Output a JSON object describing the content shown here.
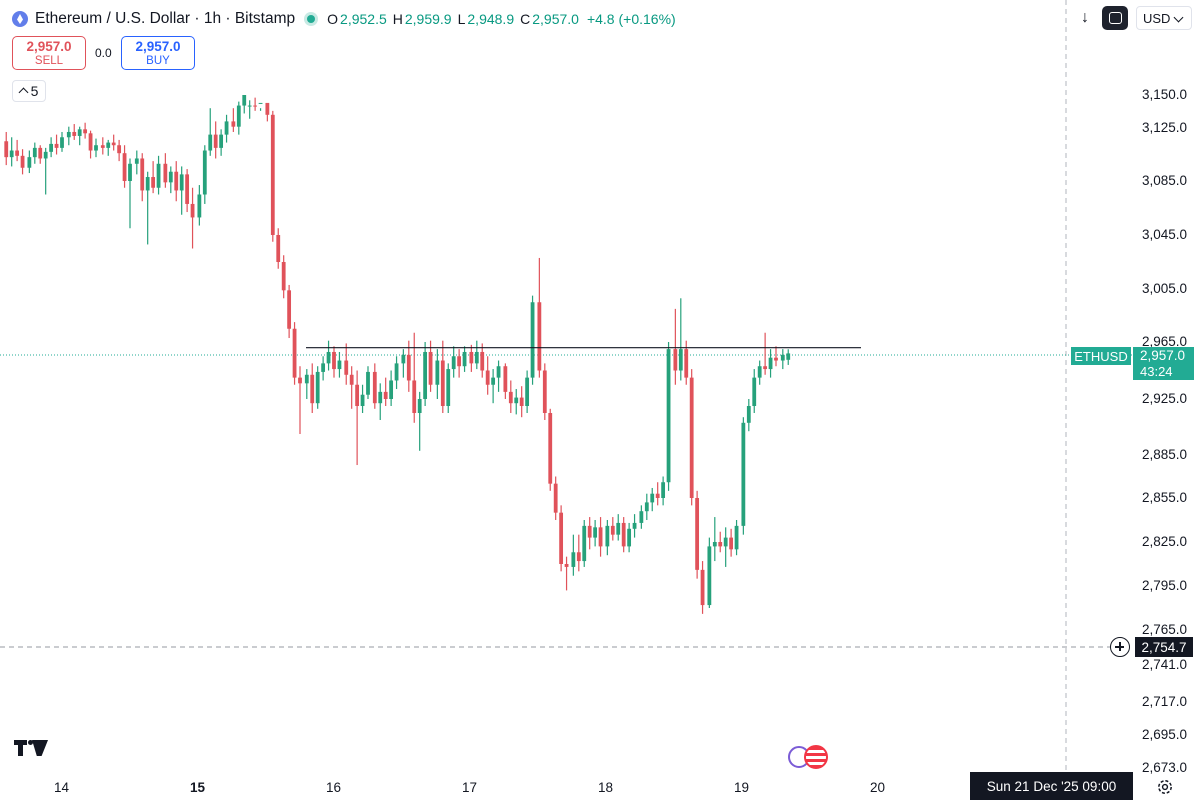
{
  "legend": {
    "title": "Ethereum / U.S. Dollar · 1h · Bitstamp",
    "o_label": "O",
    "o_value": "2,952.5",
    "h_label": "H",
    "h_value": "2,959.9",
    "l_label": "L",
    "l_value": "2,948.9",
    "c_label": "C",
    "c_value": "2,957.0",
    "change": "+4.8 (+0.16%)",
    "icon": "ethereum-icon"
  },
  "trade": {
    "sell_price": "2,957.0",
    "sell_label": "SELL",
    "spread": "0.0",
    "buy_price": "2,957.0",
    "buy_label": "BUY"
  },
  "indicator_count": "5",
  "toolbar": {
    "currency": "USD"
  },
  "price_axis": {
    "ticks": [
      "3,150.0",
      "3,125.0",
      "3,085.0",
      "3,045.0",
      "3,005.0",
      "2,965.0",
      "2,925.0",
      "2,885.0",
      "2,855.0",
      "2,825.0",
      "2,795.0",
      "2,765.0",
      "2,741.0",
      "2,717.0",
      "2,695.0",
      "2,673.0"
    ],
    "symbol": "ETHUSD",
    "last_price": "2,957.0",
    "countdown": "43:24",
    "crosshair_price": "2,754.7"
  },
  "time_axis": {
    "ticks": [
      "14",
      "15",
      "16",
      "17",
      "18",
      "19",
      "20"
    ],
    "bold_tick": "15",
    "crosshair_time": "Sun 21 Dec '25   09:00"
  },
  "colors": {
    "up": "#26a17b",
    "down": "#e0525a",
    "level_line": "#131722",
    "accent": "#22ab94"
  },
  "chart_data": {
    "type": "candlestick",
    "title": "Ethereum / U.S. Dollar · 1h · Bitstamp",
    "interval": "1h",
    "ylim": [
      2665,
      3175
    ],
    "x_range": [
      13.57,
      20.76
    ],
    "horizontal_line": 2961,
    "last_price": 2957.0,
    "crosshair": {
      "price": 2754.7,
      "time": "Sun 21 Dec '25 09:00"
    },
    "series": [
      {
        "t": 13.59,
        "o": 3115,
        "h": 3122,
        "l": 3097,
        "c": 3103
      },
      {
        "t": 13.63,
        "o": 3103,
        "h": 3118,
        "l": 3096,
        "c": 3108
      },
      {
        "t": 13.67,
        "o": 3108,
        "h": 3116,
        "l": 3100,
        "c": 3104
      },
      {
        "t": 13.71,
        "o": 3104,
        "h": 3109,
        "l": 3090,
        "c": 3095
      },
      {
        "t": 13.76,
        "o": 3095,
        "h": 3108,
        "l": 3091,
        "c": 3103
      },
      {
        "t": 13.8,
        "o": 3103,
        "h": 3114,
        "l": 3098,
        "c": 3110
      },
      {
        "t": 13.84,
        "o": 3110,
        "h": 3112,
        "l": 3098,
        "c": 3102
      },
      {
        "t": 13.88,
        "o": 3102,
        "h": 3110,
        "l": 3075,
        "c": 3107
      },
      {
        "t": 13.92,
        "o": 3107,
        "h": 3118,
        "l": 3103,
        "c": 3113
      },
      {
        "t": 13.96,
        "o": 3113,
        "h": 3120,
        "l": 3105,
        "c": 3110
      },
      {
        "t": 14.0,
        "o": 3110,
        "h": 3122,
        "l": 3107,
        "c": 3118
      },
      {
        "t": 14.05,
        "o": 3118,
        "h": 3126,
        "l": 3112,
        "c": 3122
      },
      {
        "t": 14.09,
        "o": 3122,
        "h": 3128,
        "l": 3116,
        "c": 3119
      },
      {
        "t": 14.13,
        "o": 3119,
        "h": 3126,
        "l": 3112,
        "c": 3124
      },
      {
        "t": 14.17,
        "o": 3124,
        "h": 3129,
        "l": 3117,
        "c": 3121
      },
      {
        "t": 14.21,
        "o": 3121,
        "h": 3123,
        "l": 3102,
        "c": 3108
      },
      {
        "t": 14.25,
        "o": 3108,
        "h": 3117,
        "l": 3103,
        "c": 3112
      },
      {
        "t": 14.3,
        "o": 3112,
        "h": 3118,
        "l": 3105,
        "c": 3110
      },
      {
        "t": 14.34,
        "o": 3110,
        "h": 3116,
        "l": 3104,
        "c": 3114
      },
      {
        "t": 14.38,
        "o": 3114,
        "h": 3120,
        "l": 3108,
        "c": 3112
      },
      {
        "t": 14.42,
        "o": 3112,
        "h": 3116,
        "l": 3100,
        "c": 3106
      },
      {
        "t": 14.46,
        "o": 3106,
        "h": 3112,
        "l": 3080,
        "c": 3085
      },
      {
        "t": 14.5,
        "o": 3085,
        "h": 3102,
        "l": 3050,
        "c": 3098
      },
      {
        "t": 14.55,
        "o": 3098,
        "h": 3108,
        "l": 3090,
        "c": 3102
      },
      {
        "t": 14.59,
        "o": 3102,
        "h": 3106,
        "l": 3070,
        "c": 3078
      },
      {
        "t": 14.63,
        "o": 3078,
        "h": 3092,
        "l": 3038,
        "c": 3088
      },
      {
        "t": 14.67,
        "o": 3088,
        "h": 3100,
        "l": 3076,
        "c": 3080
      },
      {
        "t": 14.71,
        "o": 3080,
        "h": 3104,
        "l": 3075,
        "c": 3098
      },
      {
        "t": 14.76,
        "o": 3098,
        "h": 3106,
        "l": 3080,
        "c": 3084
      },
      {
        "t": 14.8,
        "o": 3084,
        "h": 3096,
        "l": 3076,
        "c": 3092
      },
      {
        "t": 14.84,
        "o": 3092,
        "h": 3100,
        "l": 3070,
        "c": 3078
      },
      {
        "t": 14.88,
        "o": 3078,
        "h": 3096,
        "l": 3060,
        "c": 3090
      },
      {
        "t": 14.92,
        "o": 3090,
        "h": 3094,
        "l": 3062,
        "c": 3068
      },
      {
        "t": 14.96,
        "o": 3068,
        "h": 3080,
        "l": 3035,
        "c": 3058
      },
      {
        "t": 15.01,
        "o": 3058,
        "h": 3082,
        "l": 3052,
        "c": 3075
      },
      {
        "t": 15.05,
        "o": 3075,
        "h": 3112,
        "l": 3068,
        "c": 3108
      },
      {
        "t": 15.09,
        "o": 3108,
        "h": 3140,
        "l": 3104,
        "c": 3120
      },
      {
        "t": 15.13,
        "o": 3120,
        "h": 3130,
        "l": 3102,
        "c": 3110
      },
      {
        "t": 15.17,
        "o": 3110,
        "h": 3124,
        "l": 3104,
        "c": 3120
      },
      {
        "t": 15.21,
        "o": 3120,
        "h": 3135,
        "l": 3114,
        "c": 3130
      },
      {
        "t": 15.26,
        "o": 3130,
        "h": 3140,
        "l": 3122,
        "c": 3126
      },
      {
        "t": 15.3,
        "o": 3126,
        "h": 3145,
        "l": 3120,
        "c": 3142
      },
      {
        "t": 15.34,
        "o": 3142,
        "h": 3155,
        "l": 3136,
        "c": 3150
      },
      {
        "t": 15.38,
        "o": 3150,
        "h": 3168,
        "l": 3146,
        "c": 3158
      },
      {
        "t": 15.42,
        "o": 3158,
        "h": 3162,
        "l": 3148,
        "c": 3153
      },
      {
        "t": 15.46,
        "o": 3153,
        "h": 3162,
        "l": 3140,
        "c": 3156
      },
      {
        "t": 15.51,
        "o": 3156,
        "h": 3158,
        "l": 3130,
        "c": 3135
      },
      {
        "t": 15.55,
        "o": 3135,
        "h": 3138,
        "l": 3040,
        "c": 3045
      },
      {
        "t": 15.59,
        "o": 3045,
        "h": 3050,
        "l": 3020,
        "c": 3025
      },
      {
        "t": 15.63,
        "o": 3025,
        "h": 3030,
        "l": 2998,
        "c": 3004
      },
      {
        "t": 15.67,
        "o": 3004,
        "h": 3008,
        "l": 2968,
        "c": 2975
      },
      {
        "t": 15.71,
        "o": 2975,
        "h": 2980,
        "l": 2935,
        "c": 2940
      },
      {
        "t": 15.75,
        "o": 2940,
        "h": 2948,
        "l": 2900,
        "c": 2936
      },
      {
        "t": 15.8,
        "o": 2936,
        "h": 2946,
        "l": 2925,
        "c": 2942
      },
      {
        "t": 15.84,
        "o": 2942,
        "h": 2950,
        "l": 2915,
        "c": 2922
      },
      {
        "t": 15.88,
        "o": 2922,
        "h": 2948,
        "l": 2918,
        "c": 2944
      },
      {
        "t": 15.92,
        "o": 2944,
        "h": 2955,
        "l": 2938,
        "c": 2950
      },
      {
        "t": 15.96,
        "o": 2950,
        "h": 2966,
        "l": 2945,
        "c": 2958
      },
      {
        "t": 16.0,
        "o": 2958,
        "h": 2962,
        "l": 2940,
        "c": 2946
      },
      {
        "t": 16.04,
        "o": 2946,
        "h": 2958,
        "l": 2940,
        "c": 2952
      },
      {
        "t": 16.09,
        "o": 2952,
        "h": 2964,
        "l": 2935,
        "c": 2942
      },
      {
        "t": 16.13,
        "o": 2942,
        "h": 2948,
        "l": 2918,
        "c": 2935
      },
      {
        "t": 16.17,
        "o": 2935,
        "h": 2945,
        "l": 2878,
        "c": 2920
      },
      {
        "t": 16.21,
        "o": 2920,
        "h": 2935,
        "l": 2915,
        "c": 2928
      },
      {
        "t": 16.25,
        "o": 2928,
        "h": 2948,
        "l": 2925,
        "c": 2944
      },
      {
        "t": 16.3,
        "o": 2944,
        "h": 2950,
        "l": 2918,
        "c": 2922
      },
      {
        "t": 16.34,
        "o": 2922,
        "h": 2936,
        "l": 2910,
        "c": 2930
      },
      {
        "t": 16.38,
        "o": 2930,
        "h": 2940,
        "l": 2920,
        "c": 2925
      },
      {
        "t": 16.42,
        "o": 2925,
        "h": 2945,
        "l": 2920,
        "c": 2938
      },
      {
        "t": 16.46,
        "o": 2938,
        "h": 2955,
        "l": 2932,
        "c": 2950
      },
      {
        "t": 16.51,
        "o": 2950,
        "h": 2960,
        "l": 2940,
        "c": 2956
      },
      {
        "t": 16.55,
        "o": 2956,
        "h": 2966,
        "l": 2930,
        "c": 2938
      },
      {
        "t": 16.59,
        "o": 2938,
        "h": 2972,
        "l": 2908,
        "c": 2915
      },
      {
        "t": 16.63,
        "o": 2915,
        "h": 2930,
        "l": 2888,
        "c": 2925
      },
      {
        "t": 16.67,
        "o": 2925,
        "h": 2965,
        "l": 2920,
        "c": 2958
      },
      {
        "t": 16.71,
        "o": 2958,
        "h": 2966,
        "l": 2930,
        "c": 2935
      },
      {
        "t": 16.76,
        "o": 2935,
        "h": 2960,
        "l": 2925,
        "c": 2952
      },
      {
        "t": 16.8,
        "o": 2952,
        "h": 2966,
        "l": 2915,
        "c": 2920
      },
      {
        "t": 16.84,
        "o": 2920,
        "h": 2950,
        "l": 2915,
        "c": 2946
      },
      {
        "t": 16.88,
        "o": 2946,
        "h": 2962,
        "l": 2940,
        "c": 2955
      },
      {
        "t": 16.92,
        "o": 2955,
        "h": 2960,
        "l": 2940,
        "c": 2948
      },
      {
        "t": 16.96,
        "o": 2948,
        "h": 2962,
        "l": 2944,
        "c": 2958
      },
      {
        "t": 17.01,
        "o": 2958,
        "h": 2963,
        "l": 2944,
        "c": 2950
      },
      {
        "t": 17.05,
        "o": 2950,
        "h": 2966,
        "l": 2946,
        "c": 2958
      },
      {
        "t": 17.09,
        "o": 2958,
        "h": 2964,
        "l": 2940,
        "c": 2945
      },
      {
        "t": 17.13,
        "o": 2945,
        "h": 2955,
        "l": 2928,
        "c": 2935
      },
      {
        "t": 17.17,
        "o": 2935,
        "h": 2946,
        "l": 2922,
        "c": 2940
      },
      {
        "t": 17.21,
        "o": 2940,
        "h": 2952,
        "l": 2930,
        "c": 2948
      },
      {
        "t": 17.26,
        "o": 2948,
        "h": 2950,
        "l": 2925,
        "c": 2930
      },
      {
        "t": 17.3,
        "o": 2930,
        "h": 2938,
        "l": 2915,
        "c": 2922
      },
      {
        "t": 17.34,
        "o": 2922,
        "h": 2932,
        "l": 2914,
        "c": 2926
      },
      {
        "t": 17.38,
        "o": 2926,
        "h": 2934,
        "l": 2912,
        "c": 2920
      },
      {
        "t": 17.42,
        "o": 2920,
        "h": 2945,
        "l": 2915,
        "c": 2940
      },
      {
        "t": 17.46,
        "o": 2940,
        "h": 3000,
        "l": 2935,
        "c": 2995
      },
      {
        "t": 17.51,
        "o": 2995,
        "h": 3028,
        "l": 2940,
        "c": 2945
      },
      {
        "t": 17.55,
        "o": 2945,
        "h": 2950,
        "l": 2910,
        "c": 2915
      },
      {
        "t": 17.59,
        "o": 2915,
        "h": 2918,
        "l": 2860,
        "c": 2865
      },
      {
        "t": 17.63,
        "o": 2865,
        "h": 2870,
        "l": 2840,
        "c": 2845
      },
      {
        "t": 17.67,
        "o": 2845,
        "h": 2850,
        "l": 2805,
        "c": 2810
      },
      {
        "t": 17.71,
        "o": 2810,
        "h": 2815,
        "l": 2792,
        "c": 2808
      },
      {
        "t": 17.76,
        "o": 2808,
        "h": 2830,
        "l": 2802,
        "c": 2818
      },
      {
        "t": 17.8,
        "o": 2818,
        "h": 2830,
        "l": 2805,
        "c": 2812
      },
      {
        "t": 17.84,
        "o": 2812,
        "h": 2840,
        "l": 2808,
        "c": 2836
      },
      {
        "t": 17.88,
        "o": 2836,
        "h": 2842,
        "l": 2820,
        "c": 2828
      },
      {
        "t": 17.92,
        "o": 2828,
        "h": 2840,
        "l": 2822,
        "c": 2835
      },
      {
        "t": 17.96,
        "o": 2835,
        "h": 2842,
        "l": 2815,
        "c": 2822
      },
      {
        "t": 18.01,
        "o": 2822,
        "h": 2840,
        "l": 2816,
        "c": 2836
      },
      {
        "t": 18.05,
        "o": 2836,
        "h": 2842,
        "l": 2826,
        "c": 2830
      },
      {
        "t": 18.09,
        "o": 2830,
        "h": 2844,
        "l": 2826,
        "c": 2838
      },
      {
        "t": 18.13,
        "o": 2838,
        "h": 2842,
        "l": 2818,
        "c": 2822
      },
      {
        "t": 18.17,
        "o": 2822,
        "h": 2838,
        "l": 2818,
        "c": 2834
      },
      {
        "t": 18.21,
        "o": 2834,
        "h": 2844,
        "l": 2828,
        "c": 2838
      },
      {
        "t": 18.26,
        "o": 2838,
        "h": 2850,
        "l": 2834,
        "c": 2846
      },
      {
        "t": 18.3,
        "o": 2846,
        "h": 2858,
        "l": 2840,
        "c": 2852
      },
      {
        "t": 18.34,
        "o": 2852,
        "h": 2862,
        "l": 2846,
        "c": 2858
      },
      {
        "t": 18.38,
        "o": 2858,
        "h": 2866,
        "l": 2850,
        "c": 2855
      },
      {
        "t": 18.42,
        "o": 2855,
        "h": 2870,
        "l": 2850,
        "c": 2866
      },
      {
        "t": 18.46,
        "o": 2866,
        "h": 2965,
        "l": 2860,
        "c": 2960
      },
      {
        "t": 18.51,
        "o": 2960,
        "h": 2990,
        "l": 2935,
        "c": 2945
      },
      {
        "t": 18.55,
        "o": 2945,
        "h": 2998,
        "l": 2938,
        "c": 2960
      },
      {
        "t": 18.59,
        "o": 2960,
        "h": 2966,
        "l": 2935,
        "c": 2940
      },
      {
        "t": 18.63,
        "o": 2940,
        "h": 2946,
        "l": 2850,
        "c": 2855
      },
      {
        "t": 18.67,
        "o": 2855,
        "h": 2860,
        "l": 2800,
        "c": 2806
      },
      {
        "t": 18.71,
        "o": 2806,
        "h": 2812,
        "l": 2776,
        "c": 2782
      },
      {
        "t": 18.76,
        "o": 2782,
        "h": 2828,
        "l": 2780,
        "c": 2822
      },
      {
        "t": 18.8,
        "o": 2822,
        "h": 2842,
        "l": 2812,
        "c": 2825
      },
      {
        "t": 18.84,
        "o": 2825,
        "h": 2832,
        "l": 2818,
        "c": 2822
      },
      {
        "t": 18.88,
        "o": 2822,
        "h": 2835,
        "l": 2808,
        "c": 2828
      },
      {
        "t": 18.92,
        "o": 2828,
        "h": 2834,
        "l": 2815,
        "c": 2820
      },
      {
        "t": 18.96,
        "o": 2820,
        "h": 2840,
        "l": 2816,
        "c": 2836
      },
      {
        "t": 19.01,
        "o": 2836,
        "h": 2912,
        "l": 2830,
        "c": 2908
      },
      {
        "t": 19.05,
        "o": 2908,
        "h": 2925,
        "l": 2902,
        "c": 2920
      },
      {
        "t": 19.09,
        "o": 2920,
        "h": 2946,
        "l": 2915,
        "c": 2940
      },
      {
        "t": 19.13,
        "o": 2940,
        "h": 2952,
        "l": 2935,
        "c": 2948
      },
      {
        "t": 19.17,
        "o": 2948,
        "h": 2972,
        "l": 2942,
        "c": 2946
      },
      {
        "t": 19.21,
        "o": 2946,
        "h": 2960,
        "l": 2940,
        "c": 2954
      },
      {
        "t": 19.25,
        "o": 2954,
        "h": 2962,
        "l": 2948,
        "c": 2952
      },
      {
        "t": 19.3,
        "o": 2952,
        "h": 2960,
        "l": 2946,
        "c": 2956
      },
      {
        "t": 19.34,
        "o": 2952.5,
        "h": 2959.9,
        "l": 2948.9,
        "c": 2957.0
      }
    ]
  }
}
